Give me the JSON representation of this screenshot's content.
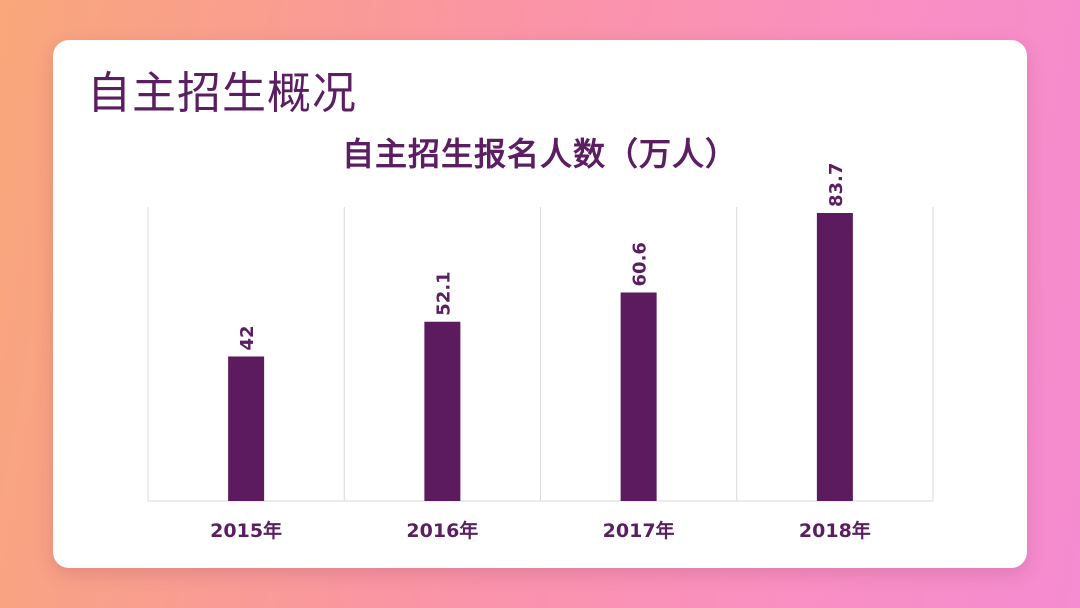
{
  "slide": {
    "title": "自主招生概况"
  },
  "colors": {
    "bar": "#5c1a5f",
    "text": "#5b1e62",
    "grid": "#d9d9d9"
  },
  "chart_data": {
    "type": "bar",
    "title": "自主招生报名人数（万人）",
    "categories": [
      "2015年",
      "2016年",
      "2017年",
      "2018年"
    ],
    "values": [
      42,
      52.1,
      60.6,
      83.7
    ],
    "value_labels": [
      "42",
      "52.1",
      "60.6",
      "83.7"
    ],
    "xlabel": "",
    "ylabel": "",
    "ylim": [
      0,
      83.7
    ],
    "grid": "vertical",
    "legend": "none"
  }
}
